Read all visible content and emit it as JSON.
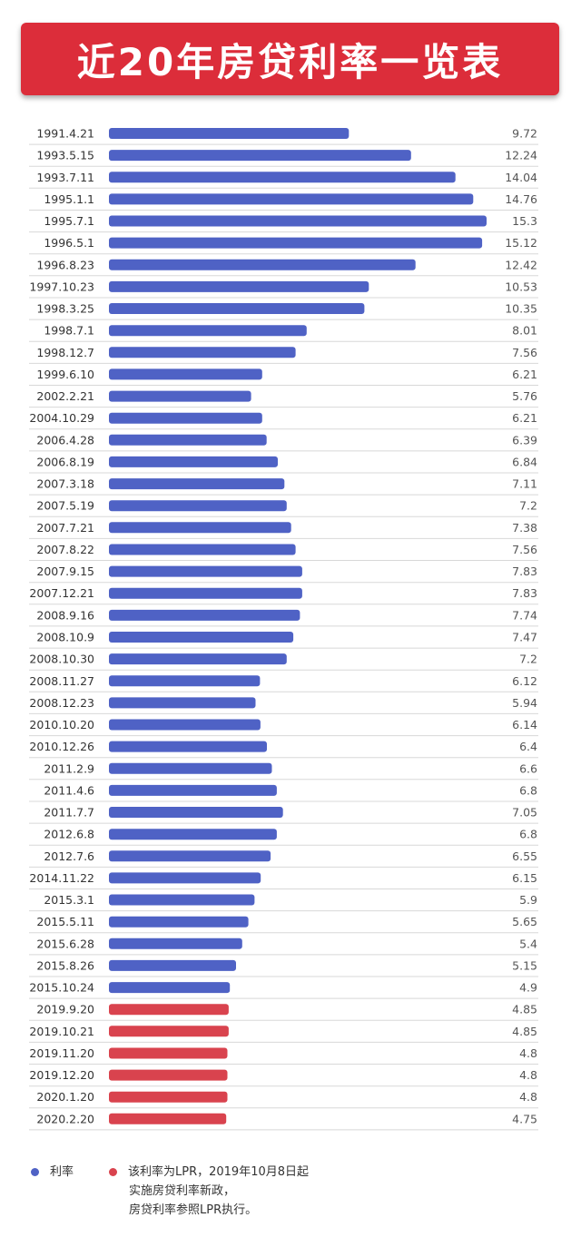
{
  "title": "近20年房贷利率一览表",
  "chart_data": {
    "type": "bar",
    "orientation": "horizontal",
    "categories": [
      "1991.4.21",
      "1993.5.15",
      "1993.7.11",
      "1995.1.1",
      "1995.7.1",
      "1996.5.1",
      "1996.8.23",
      "1997.10.23",
      "1998.3.25",
      "1998.7.1",
      "1998.12.7",
      "1999.6.10",
      "2002.2.21",
      "2004.10.29",
      "2006.4.28",
      "2006.8.19",
      "2007.3.18",
      "2007.5.19",
      "2007.7.21",
      "2007.8.22",
      "2007.9.15",
      "2007.12.21",
      "2008.9.16",
      "2008.10.9",
      "2008.10.30",
      "2008.11.27",
      "2008.12.23",
      "2010.10.20",
      "2010.12.26",
      "2011.2.9",
      "2011.4.6",
      "2011.7.7",
      "2012.6.8",
      "2012.7.6",
      "2014.11.22",
      "2015.3.1",
      "2015.5.11",
      "2015.6.28",
      "2015.8.26",
      "2015.10.24",
      "2019.9.20",
      "2019.10.21",
      "2019.11.20",
      "2019.12.20",
      "2020.1.20",
      "2020.2.20"
    ],
    "values": [
      9.72,
      12.24,
      14.04,
      14.76,
      15.3,
      15.12,
      12.42,
      10.53,
      10.35,
      8.01,
      7.56,
      6.21,
      5.76,
      6.21,
      6.39,
      6.84,
      7.11,
      7.2,
      7.38,
      7.56,
      7.83,
      7.83,
      7.74,
      7.47,
      7.2,
      6.12,
      5.94,
      6.14,
      6.4,
      6.6,
      6.8,
      7.05,
      6.8,
      6.55,
      6.15,
      5.9,
      5.65,
      5.4,
      5.15,
      4.9,
      4.85,
      4.85,
      4.8,
      4.8,
      4.8,
      4.75
    ],
    "value_labels": [
      "9.72",
      "12.24",
      "14.04",
      "14.76",
      "15.3",
      "15.12",
      "12.42",
      "10.53",
      "10.35",
      "8.01",
      "7.56",
      "6.21",
      "5.76",
      "6.21",
      "6.39",
      "6.84",
      "7.11",
      "7.2",
      "7.38",
      "7.56",
      "7.83",
      "7.83",
      "7.74",
      "7.47",
      "7.2",
      "6.12",
      "5.94",
      "6.14",
      "6.4",
      "6.6",
      "6.8",
      "7.05",
      "6.8",
      "6.55",
      "6.15",
      "5.9",
      "5.65",
      "5.4",
      "5.15",
      "4.9",
      "4.85",
      "4.85",
      "4.8",
      "4.8",
      "4.8",
      "4.75"
    ],
    "series_type": [
      "rate",
      "rate",
      "rate",
      "rate",
      "rate",
      "rate",
      "rate",
      "rate",
      "rate",
      "rate",
      "rate",
      "rate",
      "rate",
      "rate",
      "rate",
      "rate",
      "rate",
      "rate",
      "rate",
      "rate",
      "rate",
      "rate",
      "rate",
      "rate",
      "rate",
      "rate",
      "rate",
      "rate",
      "rate",
      "rate",
      "rate",
      "rate",
      "rate",
      "rate",
      "rate",
      "rate",
      "rate",
      "rate",
      "rate",
      "rate",
      "lpr",
      "lpr",
      "lpr",
      "lpr",
      "lpr",
      "lpr"
    ],
    "colors": {
      "rate": "#4f62c5",
      "lpr": "#d9434e"
    },
    "xlim": [
      0,
      15.3
    ],
    "legend": [
      {
        "key": "rate",
        "label": "利率"
      },
      {
        "key": "lpr",
        "label": "该利率为LPR，2019年10月8日起",
        "note_lines": [
          "实施房贷利率新政，",
          "房贷利率参照LPR执行。"
        ]
      }
    ]
  }
}
